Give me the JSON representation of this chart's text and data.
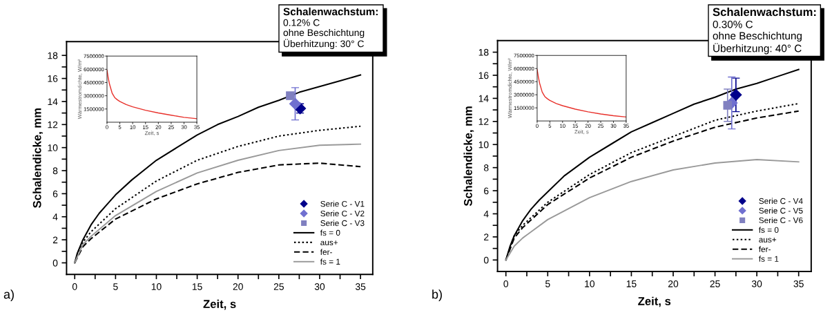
{
  "chart_data": [
    {
      "type": "line",
      "xlabel": "Zeit, s",
      "ylabel": "Schalendicke, mm",
      "xlim": [
        -1,
        36.5
      ],
      "ylim": [
        -1,
        19.2
      ],
      "xticks": [
        0,
        {
          "value": 2.5,
          "label": null
        },
        5,
        {
          "value": 7.5,
          "label": null
        },
        10,
        {
          "value": 12.5,
          "label": null
        },
        15,
        {
          "value": 17.5,
          "label": null
        },
        20,
        {
          "value": 22.5,
          "label": null
        },
        25,
        {
          "value": 27.5,
          "label": null
        },
        30,
        {
          "value": 32.5,
          "label": null
        },
        35
      ],
      "yticks": [
        0,
        {
          "value": 1,
          "label": null
        },
        2,
        {
          "value": 3,
          "label": null
        },
        4,
        {
          "value": 5,
          "label": null
        },
        6,
        {
          "value": 7,
          "label": null
        },
        8,
        {
          "value": 9,
          "label": null
        },
        10,
        {
          "value": 11,
          "label": null
        },
        12,
        {
          "value": 13,
          "label": null
        },
        14,
        {
          "value": 15,
          "label": null
        },
        16,
        {
          "value": 17,
          "label": null
        },
        18
      ],
      "legend": "bottom right",
      "annotations": [
        "a)",
        "Schalenwachstum:",
        "0.12% C",
        "ohne Beschichtung",
        "Überhitzung: 30° C"
      ],
      "series": [
        {
          "name": "Serie C - V1",
          "type": "scatter",
          "marker": "diamond",
          "color": "#00008b",
          "x": [
            27.6
          ],
          "values": [
            13.4
          ],
          "errors": [
            0.4
          ]
        },
        {
          "name": "Serie C - V2",
          "type": "scatter",
          "marker": "diamond",
          "color": "#7070d0",
          "x": [
            27.0
          ],
          "values": [
            13.8
          ],
          "errors": [
            1.4
          ]
        },
        {
          "name": "Serie C - V3",
          "type": "scatter",
          "marker": "square",
          "color": "#8080c0",
          "x": [
            26.4
          ],
          "values": [
            14.5
          ],
          "errors": [
            0.3
          ]
        },
        {
          "name": "fs = 0",
          "type": "line",
          "line_style": "solid",
          "color": "#000000",
          "x": [
            0,
            0.3,
            1,
            2,
            3,
            4,
            5,
            7,
            10,
            12.5,
            15,
            17.5,
            20,
            22.5,
            25,
            27.5,
            30,
            32.5,
            35
          ],
          "values": [
            0,
            0.8,
            2,
            3.3,
            4.3,
            5.1,
            5.9,
            7.2,
            8.9,
            10.0,
            11.1,
            12.0,
            12.7,
            13.5,
            14.1,
            14.8,
            15.3,
            15.8,
            16.3
          ]
        },
        {
          "name": "aus+",
          "type": "line",
          "line_style": "dotted",
          "color": "#000000",
          "x": [
            0,
            1,
            2,
            5,
            10,
            15,
            20,
            25,
            30,
            35
          ],
          "values": [
            0,
            1.8,
            2.7,
            4.7,
            7.1,
            8.9,
            10.1,
            11.0,
            11.5,
            11.85
          ]
        },
        {
          "name": "fer-",
          "type": "line",
          "line_style": "dashed",
          "color": "#000000",
          "x": [
            0,
            1,
            2,
            5,
            10,
            15,
            20,
            25,
            30,
            35
          ],
          "values": [
            0,
            1.4,
            2.1,
            3.8,
            5.55,
            6.85,
            7.85,
            8.5,
            8.65,
            8.35
          ]
        },
        {
          "name": "fs = 1",
          "type": "line",
          "line_style": "solid",
          "color": "#999999",
          "x": [
            0,
            1,
            2,
            5,
            10,
            15,
            20,
            25,
            30,
            35
          ],
          "values": [
            0,
            1.6,
            2.3,
            4.1,
            6.2,
            7.8,
            8.9,
            9.75,
            10.2,
            10.3
          ]
        }
      ]
    },
    {
      "type": "line",
      "xlabel": "Zeit, s",
      "ylabel": "Wärmestromdichte, W/m²",
      "xlim": [
        0,
        35
      ],
      "ylim": [
        0,
        7500000
      ],
      "xticks": [
        0,
        5,
        10,
        15,
        20,
        25,
        30,
        35
      ],
      "yticks": [
        1500000,
        3000000,
        4500000,
        6000000,
        7500000
      ],
      "series": [
        {
          "color": "#e8302a",
          "x": [
            0,
            0.5,
            1,
            2,
            3,
            4,
            5,
            7.5,
            10,
            15,
            20,
            25,
            30,
            35
          ],
          "values": [
            5900000,
            5000000,
            4300000,
            3300000,
            2800000,
            2550000,
            2350000,
            2000000,
            1750000,
            1350000,
            1050000,
            800000,
            550000,
            400000
          ]
        }
      ]
    },
    {
      "type": "line",
      "xlabel": "Zeit, s",
      "ylabel": "Schalendicke, mm",
      "xlim": [
        -1,
        36.5
      ],
      "ylim": [
        -1,
        19
      ],
      "xticks": [
        0,
        {
          "value": 2.5,
          "label": null
        },
        5,
        {
          "value": 7.5,
          "label": null
        },
        10,
        {
          "value": 12.5,
          "label": null
        },
        15,
        {
          "value": 17.5,
          "label": null
        },
        20,
        {
          "value": 22.5,
          "label": null
        },
        25,
        {
          "value": 27.5,
          "label": null
        },
        30,
        {
          "value": 32.5,
          "label": null
        },
        35
      ],
      "yticks": [
        0,
        {
          "value": 1,
          "label": null
        },
        2,
        {
          "value": 3,
          "label": null
        },
        4,
        {
          "value": 5,
          "label": null
        },
        6,
        {
          "value": 7,
          "label": null
        },
        8,
        {
          "value": 9,
          "label": null
        },
        10,
        {
          "value": 11,
          "label": null
        },
        12,
        {
          "value": 13,
          "label": null
        },
        14,
        {
          "value": 15,
          "label": null
        },
        16,
        {
          "value": 17,
          "label": null
        },
        18
      ],
      "legend": "bottom right",
      "annotations": [
        "b)",
        "Schalenwachstum:",
        "0.30% C",
        "ohne Beschichtung",
        "Überhitzung: 40° C"
      ],
      "series": [
        {
          "name": "Serie C - V4",
          "type": "scatter",
          "marker": "diamond",
          "color": "#00008b",
          "x": [
            27.5
          ],
          "values": [
            14.3
          ],
          "errors": [
            1.45
          ]
        },
        {
          "name": "Serie C - V5",
          "type": "scatter",
          "marker": "diamond",
          "color": "#7070d0",
          "x": [
            27.0
          ],
          "values": [
            13.6
          ],
          "errors": [
            2.25
          ]
        },
        {
          "name": "Serie C - V6",
          "type": "scatter",
          "marker": "square",
          "color": "#8080c0",
          "x": [
            26.5
          ],
          "values": [
            13.4
          ],
          "errors": [
            1.4
          ]
        },
        {
          "name": "fs = 0",
          "type": "line",
          "line_style": "solid",
          "color": "#000000",
          "x": [
            0,
            0.5,
            1,
            2,
            3,
            4,
            5,
            7,
            10,
            12.5,
            15,
            17.5,
            20,
            22.5,
            25,
            27.5,
            30,
            32.5,
            35
          ],
          "values": [
            0,
            1.2,
            2.1,
            3.4,
            4.4,
            5.2,
            5.9,
            7.3,
            8.9,
            10.0,
            11.1,
            11.9,
            12.7,
            13.5,
            14.1,
            14.8,
            15.3,
            15.9,
            16.5
          ]
        },
        {
          "name": "aus+",
          "type": "line",
          "line_style": "dotted",
          "color": "#000000",
          "x": [
            0,
            1,
            2,
            5,
            10,
            15,
            20,
            25,
            30,
            35
          ],
          "values": [
            0,
            2.1,
            3.0,
            5.0,
            7.4,
            9.3,
            10.7,
            12.1,
            12.9,
            13.55
          ]
        },
        {
          "name": "fer-",
          "type": "line",
          "line_style": "dashed",
          "color": "#000000",
          "x": [
            0,
            1,
            2,
            5,
            10,
            15,
            20,
            25,
            30,
            35
          ],
          "values": [
            0,
            1.9,
            2.8,
            4.8,
            7.1,
            8.9,
            10.3,
            11.5,
            12.3,
            12.9
          ]
        },
        {
          "name": "fs = 1",
          "type": "line",
          "line_style": "solid",
          "color": "#999999",
          "x": [
            0,
            1,
            2,
            5,
            10,
            15,
            20,
            25,
            30,
            35
          ],
          "values": [
            0,
            1.2,
            1.9,
            3.5,
            5.4,
            6.8,
            7.8,
            8.4,
            8.7,
            8.5
          ]
        }
      ]
    },
    {
      "type": "line",
      "xlabel": "Zeit, s",
      "ylabel": "Wärmestromdichte, W/m²",
      "xlim": [
        0,
        35
      ],
      "ylim": [
        0,
        7500000
      ],
      "xticks": [
        0,
        5,
        10,
        15,
        20,
        25,
        30,
        35
      ],
      "yticks": [
        1500000,
        3000000,
        4500000,
        6000000,
        7500000
      ],
      "series": [
        {
          "color": "#e8302a",
          "x": [
            0,
            0.5,
            1,
            2,
            3,
            4,
            5,
            7.5,
            10,
            15,
            20,
            25,
            30,
            35
          ],
          "values": [
            5900000,
            5000000,
            4300000,
            3300000,
            2800000,
            2550000,
            2350000,
            2000000,
            1750000,
            1350000,
            1050000,
            800000,
            600000,
            450000
          ]
        }
      ]
    }
  ]
}
